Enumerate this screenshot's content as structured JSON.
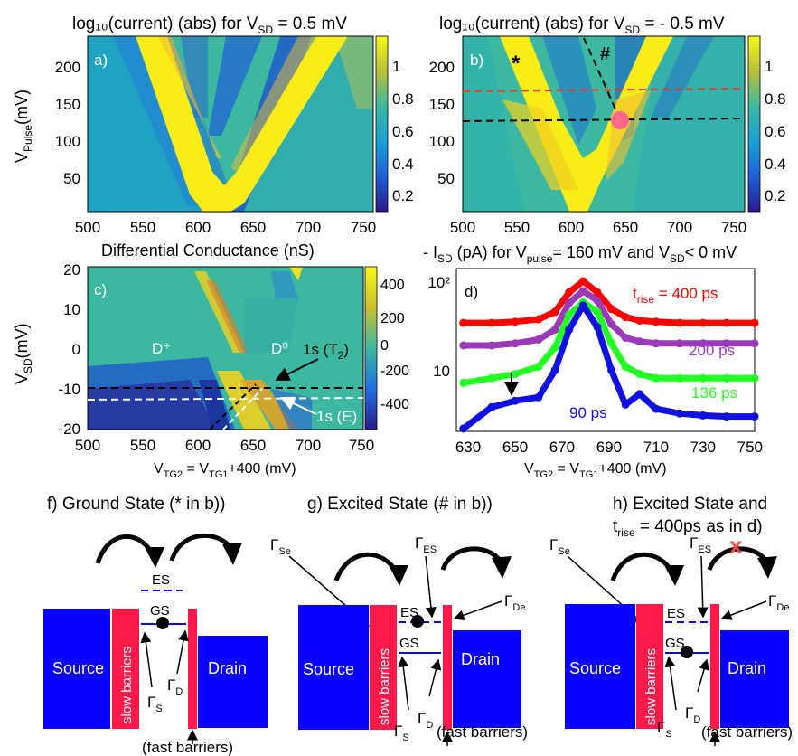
{
  "panel_a": {
    "title": "log₁₀(current) (abs) for V",
    "title_sub": "SD",
    "title_tail": " = 0.5 mV",
    "label": "a)",
    "ylabel": "V",
    "ylabel_sub": "Pulse",
    "ylabel_tail": "(mV)",
    "yticks": [
      "200",
      "150",
      "100",
      "50"
    ],
    "xticks": [
      "500",
      "550",
      "600",
      "650",
      "700",
      "750"
    ],
    "cbar_ticks": [
      "1",
      "0.8",
      "0.6",
      "0.4",
      "0.2"
    ]
  },
  "panel_b": {
    "title": "log₁₀(current) (abs) for V",
    "title_sub": "SD",
    "title_tail": " = - 0.5 mV",
    "label": "b)",
    "star": "*",
    "hash": "#",
    "yticks": [
      "200",
      "150",
      "100",
      "50"
    ],
    "xticks": [
      "500",
      "550",
      "600",
      "650",
      "700",
      "750"
    ],
    "cbar_ticks": [
      "1",
      "0.8",
      "0.6",
      "0.4",
      "0.2"
    ]
  },
  "panel_c": {
    "title": "Differential Conductance  (nS)",
    "label": "c)",
    "ylabel": "V",
    "ylabel_sub": "SD",
    "ylabel_tail": "(mV)",
    "yticks": [
      "20",
      "10",
      "0",
      "-10",
      "-20"
    ],
    "xticks": [
      "500",
      "550",
      "600",
      "650",
      "700",
      "750"
    ],
    "cbar_ticks": [
      "400",
      "200",
      "0",
      "-200",
      "-400"
    ],
    "d_plus": "D⁺",
    "d_zero": "D⁰",
    "ann_t2": "1s (T",
    "ann_t2_sub": "2",
    "ann_t2_tail": ")",
    "ann_e": "1s (E)",
    "xlabel": "V",
    "xlabel_sub1": "TG2",
    "xlabel_mid": " = V",
    "xlabel_sub2": "TG1",
    "xlabel_tail": "+400 (mV)"
  },
  "panel_d": {
    "title": "- I",
    "title_sub1": "SD",
    "title_mid": " (pA) for V",
    "title_sub2": "pulse",
    "title_tail": "= 160 mV and V",
    "title_sub3": "SD",
    "title_end": "< 0 mV",
    "label": "d)",
    "ytick_hi": "10²",
    "ytick_lo": "10",
    "xticks": [
      "630",
      "650",
      "670",
      "690",
      "710",
      "730",
      "750"
    ],
    "t_rise": "t",
    "t_rise_sub": "rise",
    "t_rise_tail": " = 400 ps",
    "label_200": "200 ps",
    "label_136": "136 ps",
    "label_90": "90 ps",
    "xlabel": "V",
    "xlabel_sub1": "TG2",
    "xlabel_mid": " = V",
    "xlabel_sub2": "TG1",
    "xlabel_tail": "+400 (mV)"
  },
  "schematic_f": {
    "title": "f) Ground State (* in b))",
    "source": "Source",
    "drain": "Drain",
    "barrier": "slow barriers",
    "es": "ES",
    "gs": "GS",
    "gamma_s": "Γ",
    "gamma_s_sub": "S",
    "gamma_d": "Γ",
    "gamma_d_sub": "D",
    "fast": "(fast barriers)"
  },
  "schematic_g": {
    "title": "g) Excited State (# in b))",
    "source": "Source",
    "drain": "Drain",
    "barrier": "slow barriers",
    "es": "ES",
    "gs": "GS",
    "gamma_se": "Γ",
    "gamma_se_sub": "Se",
    "gamma_es": "Γ",
    "gamma_es_sub": "ES",
    "gamma_de": "Γ",
    "gamma_de_sub": "De",
    "gamma_s": "Γ",
    "gamma_s_sub": "S",
    "gamma_d": "Γ",
    "gamma_d_sub": "D",
    "fast": "(fast barriers)"
  },
  "schematic_h": {
    "title": "h) Excited State and",
    "title2": "t",
    "title2_sub": "rise",
    "title2_tail": " = 400ps as in d)",
    "cross": "x",
    "source": "Source",
    "drain": "Drain",
    "barrier": "slow barriers",
    "es": "ES",
    "gs": "GS",
    "gamma_se": "Γ",
    "gamma_se_sub": "Se",
    "gamma_es": "Γ",
    "gamma_es_sub": "ES",
    "gamma_de": "Γ",
    "gamma_de_sub": "De",
    "gamma_s": "Γ",
    "gamma_s_sub": "S",
    "gamma_d": "Γ",
    "gamma_d_sub": "D",
    "fast": "(fast barriers)"
  },
  "colors": {
    "source_drain": "#0a00ff",
    "barrier": "#ff1a4a",
    "bg_teal": "#3cb8a0",
    "yellow": "#f5e81a",
    "red_curve": "#ff0000",
    "purple_curve": "#9a3ab8",
    "green_curve": "#22ff22",
    "blue_curve": "#1010e0",
    "red_dash": "#e83a2a",
    "pink_dot": "#ff6a8a"
  },
  "chart_data": [
    {
      "type": "heatmap",
      "title": "log10(current) (abs) for VSD = 0.5 mV",
      "xlabel": "VTG2 = VTG1+400 (mV)",
      "ylabel": "VPulse (mV)",
      "xlim": [
        500,
        750
      ],
      "ylim": [
        0,
        235
      ],
      "clim": [
        0.1,
        1.2
      ],
      "v_vertex": [
        620,
        10
      ],
      "v_left_top": [
        540,
        230
      ],
      "v_right_top": [
        700,
        230
      ]
    },
    {
      "type": "heatmap",
      "title": "log10(current) (abs) for VSD = - 0.5 mV",
      "xlabel": "VTG2 = VTG1+400 (mV)",
      "ylabel": "VPulse (mV)",
      "xlim": [
        500,
        750
      ],
      "ylim": [
        0,
        235
      ],
      "clim": [
        0.1,
        1.2
      ],
      "red_line_y": 160,
      "black_line_y": 120,
      "marker": [
        643,
        120
      ]
    },
    {
      "type": "heatmap",
      "title": "Differential Conductance (nS)",
      "xlabel": "VTG2 = VTG1+400 (mV)",
      "ylabel": "VSD (mV)",
      "xlim": [
        500,
        750
      ],
      "ylim": [
        -20,
        20
      ],
      "clim": [
        -500,
        500
      ],
      "black_dash_y": -9,
      "white_dash_y": -12
    },
    {
      "type": "line",
      "title": "- ISD (pA) for Vpulse = 160 mV and VSD < 0 mV",
      "xlabel": "VTG2 = VTG1+400 (mV)",
      "yscale": "log",
      "xlim": [
        625,
        752
      ],
      "ylim": [
        3,
        120
      ],
      "x": [
        628,
        640,
        650,
        660,
        667,
        673,
        679,
        685,
        691,
        697,
        703,
        710,
        720,
        730,
        740,
        752
      ],
      "series": [
        {
          "name": "t_rise = 400 ps",
          "values": [
            35,
            35,
            36,
            38,
            45,
            70,
            90,
            70,
            48,
            40,
            37,
            36,
            35,
            35,
            35,
            35
          ]
        },
        {
          "name": "200 ps",
          "values": [
            21,
            21,
            22,
            24,
            30,
            55,
            72,
            58,
            34,
            25,
            23,
            22,
            22,
            22,
            22,
            22
          ]
        },
        {
          "name": "136 ps",
          "values": [
            9,
            10,
            11,
            13,
            20,
            42,
            56,
            45,
            22,
            13,
            11,
            10,
            10,
            10,
            10,
            10
          ]
        },
        {
          "name": "90 ps",
          "values": [
            3.2,
            5.2,
            6,
            6.5,
            12,
            30,
            52,
            32,
            12,
            5.5,
            7,
            5,
            4.5,
            4.3,
            4.2,
            4.2
          ]
        }
      ]
    }
  ]
}
